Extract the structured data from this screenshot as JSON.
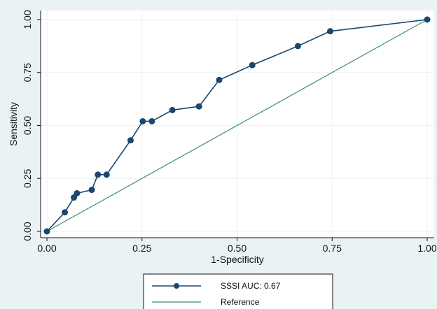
{
  "chart_data": {
    "type": "line",
    "title": "",
    "xlabel": "1-Specificity",
    "ylabel": "Sensitivity",
    "xlim": [
      0,
      1
    ],
    "ylim": [
      0,
      1
    ],
    "xticks": [
      "0.00",
      "0.25",
      "0.50",
      "0.75",
      "1.00"
    ],
    "yticks": [
      "0.00",
      "0.25",
      "0.50",
      "0.75",
      "1.00"
    ],
    "grid": true,
    "legend_position": "bottom",
    "series": [
      {
        "name": "SSSI AUC: 0.67",
        "color": "#1a476f",
        "marker": "circle",
        "x": [
          0,
          0.047,
          0.071,
          0.079,
          0.118,
          0.134,
          0.157,
          0.22,
          0.252,
          0.276,
          0.33,
          0.4,
          0.453,
          0.54,
          0.66,
          0.745,
          1
        ],
        "y": [
          0,
          0.09,
          0.16,
          0.18,
          0.196,
          0.268,
          0.268,
          0.43,
          0.52,
          0.52,
          0.573,
          0.59,
          0.715,
          0.785,
          0.875,
          0.945,
          1
        ]
      },
      {
        "name": "Reference",
        "color": "#3e8b76",
        "marker": "none",
        "x": [
          0,
          1
        ],
        "y": [
          0,
          1
        ]
      }
    ]
  }
}
